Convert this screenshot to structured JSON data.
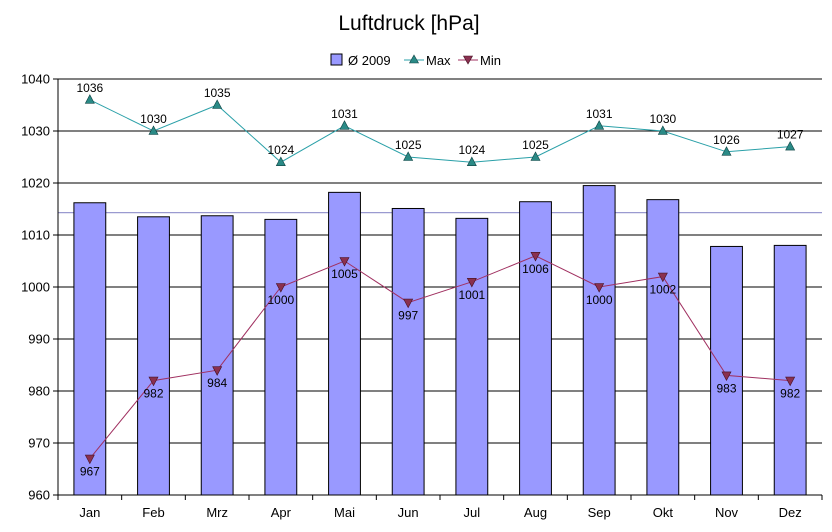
{
  "chart_data": {
    "type": "bar",
    "title": "Luftdruck [hPa]",
    "xlabel": "",
    "ylabel": "",
    "categories": [
      "Jan",
      "Feb",
      "Mrz",
      "Apr",
      "Mai",
      "Jun",
      "Jul",
      "Aug",
      "Sep",
      "Okt",
      "Nov",
      "Dez"
    ],
    "ylim": [
      960,
      1040
    ],
    "yticks": [
      960,
      970,
      980,
      990,
      1000,
      1010,
      1020,
      1030,
      1040
    ],
    "grid": true,
    "legend_position": "top",
    "reference_line": 1014.3,
    "series": [
      {
        "name": "Ø 2009",
        "type": "bar",
        "color": "#9999ff",
        "values": [
          1016.2,
          1013.5,
          1013.7,
          1013.0,
          1018.2,
          1015.1,
          1013.2,
          1016.4,
          1019.5,
          1016.8,
          1007.8,
          1008.0
        ]
      },
      {
        "name": "Max",
        "type": "line",
        "color": "#2aa0a8",
        "values": [
          1036,
          1030,
          1035,
          1024,
          1031,
          1025,
          1024,
          1025,
          1031,
          1030,
          1026,
          1027
        ]
      },
      {
        "name": "Min",
        "type": "line",
        "color": "#a03060",
        "values": [
          967,
          982,
          984,
          1000,
          1005,
          997,
          1001,
          1006,
          1000,
          1002,
          983,
          982
        ]
      }
    ]
  }
}
